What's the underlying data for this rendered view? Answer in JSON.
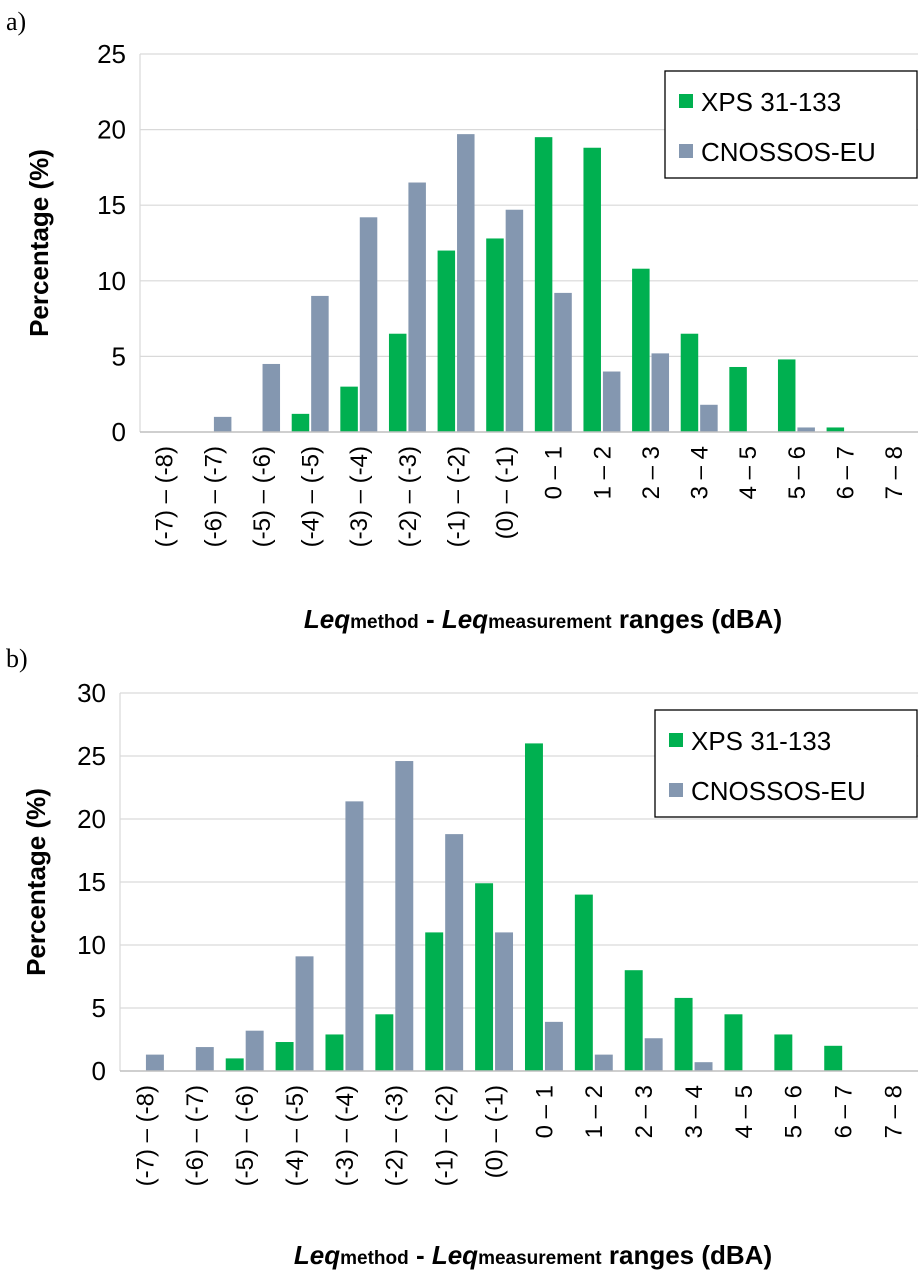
{
  "colors": {
    "XPS 31-133": "#00b050",
    "CNOSSOS-EU": "#8497b0"
  },
  "chart_data": [
    {
      "type": "bar",
      "panel": "a)",
      "categories": [
        "(-7) – (-8)",
        "(-6) – (-7)",
        "(-5) – (-6)",
        "(-4) – (-5)",
        "(-3) – (-4)",
        "(-2) – (-3)",
        "(-1) – (-2)",
        "(0) – (-1)",
        "0 – 1",
        "1 – 2",
        "2 – 3",
        "3 – 4",
        "4 – 5",
        "5 – 6",
        "6 – 7",
        "7 – 8"
      ],
      "series": [
        {
          "name": "XPS 31-133",
          "values": [
            0,
            0,
            0,
            1.2,
            3.0,
            6.5,
            12.0,
            12.8,
            19.5,
            18.8,
            10.8,
            6.5,
            4.3,
            4.8,
            0.3,
            0
          ]
        },
        {
          "name": "CNOSSOS-EU",
          "values": [
            0,
            1.0,
            4.5,
            9.0,
            14.2,
            16.5,
            19.7,
            14.7,
            9.2,
            4.0,
            5.2,
            1.8,
            0,
            0.3,
            0,
            0
          ]
        }
      ],
      "ylabel": "Percentage (%)",
      "xlabel": {
        "leq1": "Leq",
        "sub1": "method",
        "dash": " - ",
        "leq2": "Leq",
        "sub2": "measurement",
        "rest": " ranges (dBA)"
      },
      "ylim": [
        0,
        25
      ],
      "yticks": [
        0,
        5,
        10,
        15,
        20,
        25
      ],
      "grid": true,
      "legend": "top-right"
    },
    {
      "type": "bar",
      "panel": "b)",
      "categories": [
        "(-7) – (-8)",
        "(-6) – (-7)",
        "(-5) – (-6)",
        "(-4) – (-5)",
        "(-3) – (-4)",
        "(-2) – (-3)",
        "(-1) – (-2)",
        "(0) – (-1)",
        "0 – 1",
        "1 – 2",
        "2 – 3",
        "3 – 4",
        "4 – 5",
        "5 – 6",
        "6 – 7",
        "7 – 8"
      ],
      "series": [
        {
          "name": "XPS 31-133",
          "values": [
            0,
            0,
            1.0,
            2.3,
            2.9,
            4.5,
            11.0,
            14.9,
            26.0,
            14.0,
            8.0,
            5.8,
            4.5,
            2.9,
            2.0,
            0
          ]
        },
        {
          "name": "CNOSSOS-EU",
          "values": [
            1.3,
            1.9,
            3.2,
            9.1,
            21.4,
            24.6,
            18.8,
            11.0,
            3.9,
            1.3,
            2.6,
            0.7,
            0,
            0,
            0,
            0
          ]
        }
      ],
      "ylabel": "Percentage (%)",
      "xlabel": {
        "leq1": "Leq",
        "sub1": "method",
        "dash": " - ",
        "leq2": "Leq",
        "sub2": "measurement",
        "rest": " ranges (dBA)"
      },
      "ylim": [
        0,
        30
      ],
      "yticks": [
        0,
        5,
        10,
        15,
        20,
        25,
        30
      ],
      "grid": true,
      "legend": "top-right"
    }
  ]
}
